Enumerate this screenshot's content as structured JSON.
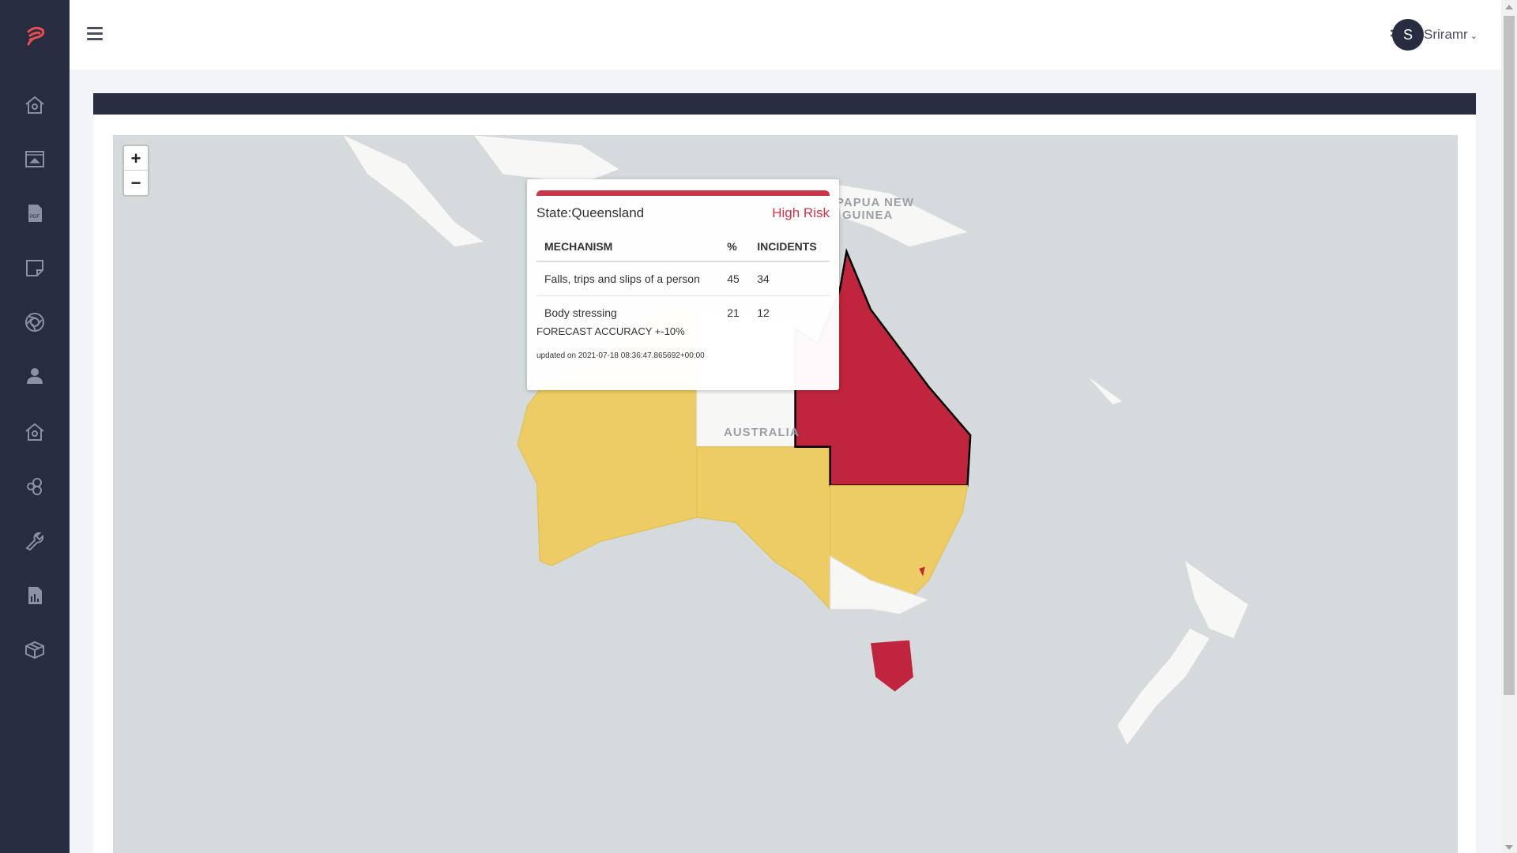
{
  "sidebar": {
    "items": [
      {
        "icon": "home-icon"
      },
      {
        "icon": "upload-icon"
      },
      {
        "icon": "pdf-icon"
      },
      {
        "icon": "note-icon"
      },
      {
        "icon": "aperture-icon"
      },
      {
        "icon": "user-icon"
      },
      {
        "icon": "home-icon"
      },
      {
        "icon": "hexagons-icon"
      },
      {
        "icon": "wrench-icon"
      },
      {
        "icon": "report-icon"
      },
      {
        "icon": "box-icon"
      }
    ]
  },
  "header": {
    "user_initial": "S",
    "user_name": "Sriramr"
  },
  "map": {
    "zoom_in": "+",
    "zoom_out": "−",
    "labels": {
      "png": "PAPUA NEW",
      "png2": "GUINEA",
      "australia": "AUSTRALIA"
    },
    "colors": {
      "high": "#c0253d",
      "medium": "#edcd63",
      "low": "#f7f7f5"
    }
  },
  "tooltip": {
    "state": "State:Queensland",
    "risk": "High Risk",
    "columns": [
      "MECHANISM",
      "%",
      "INCIDENTS"
    ],
    "rows": [
      {
        "mechanism": "Falls, trips and slips of a person",
        "pct": "45",
        "incidents": "34"
      },
      {
        "mechanism": "Body stressing",
        "pct": "21",
        "incidents": "12"
      }
    ],
    "accuracy": "FORECAST ACCURACY +-10%",
    "updated": "updated on 2021-07-18 08:36:47.865692+00:00"
  }
}
